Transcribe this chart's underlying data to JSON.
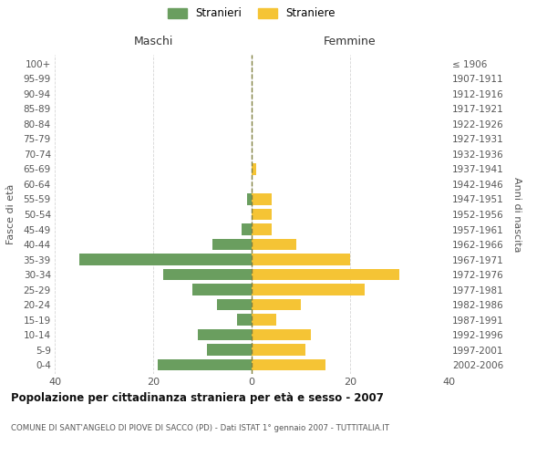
{
  "age_groups": [
    "0-4",
    "5-9",
    "10-14",
    "15-19",
    "20-24",
    "25-29",
    "30-34",
    "35-39",
    "40-44",
    "45-49",
    "50-54",
    "55-59",
    "60-64",
    "65-69",
    "70-74",
    "75-79",
    "80-84",
    "85-89",
    "90-94",
    "95-99",
    "100+"
  ],
  "birth_years": [
    "2002-2006",
    "1997-2001",
    "1992-1996",
    "1987-1991",
    "1982-1986",
    "1977-1981",
    "1972-1976",
    "1967-1971",
    "1962-1966",
    "1957-1961",
    "1952-1956",
    "1947-1951",
    "1942-1946",
    "1937-1941",
    "1932-1936",
    "1927-1931",
    "1922-1926",
    "1917-1921",
    "1912-1916",
    "1907-1911",
    "≤ 1906"
  ],
  "males": [
    19,
    9,
    11,
    3,
    7,
    12,
    18,
    35,
    8,
    2,
    0,
    1,
    0,
    0,
    0,
    0,
    0,
    0,
    0,
    0,
    0
  ],
  "females": [
    15,
    11,
    12,
    5,
    10,
    23,
    30,
    20,
    9,
    4,
    4,
    4,
    0,
    1,
    0,
    0,
    0,
    0,
    0,
    0,
    0
  ],
  "male_color": "#6a9e5f",
  "female_color": "#f5c435",
  "background_color": "#ffffff",
  "grid_color": "#cccccc",
  "center_line_color": "#808040",
  "xlim": 40,
  "title": "Popolazione per cittadinanza straniera per età e sesso - 2007",
  "subtitle": "COMUNE DI SANT'ANGELO DI PIOVE DI SACCO (PD) - Dati ISTAT 1° gennaio 2007 - TUTTITALIA.IT",
  "ylabel_left": "Fasce di età",
  "ylabel_right": "Anni di nascita",
  "xlabel_left": "Maschi",
  "xlabel_right": "Femmine",
  "legend_male": "Stranieri",
  "legend_female": "Straniere"
}
